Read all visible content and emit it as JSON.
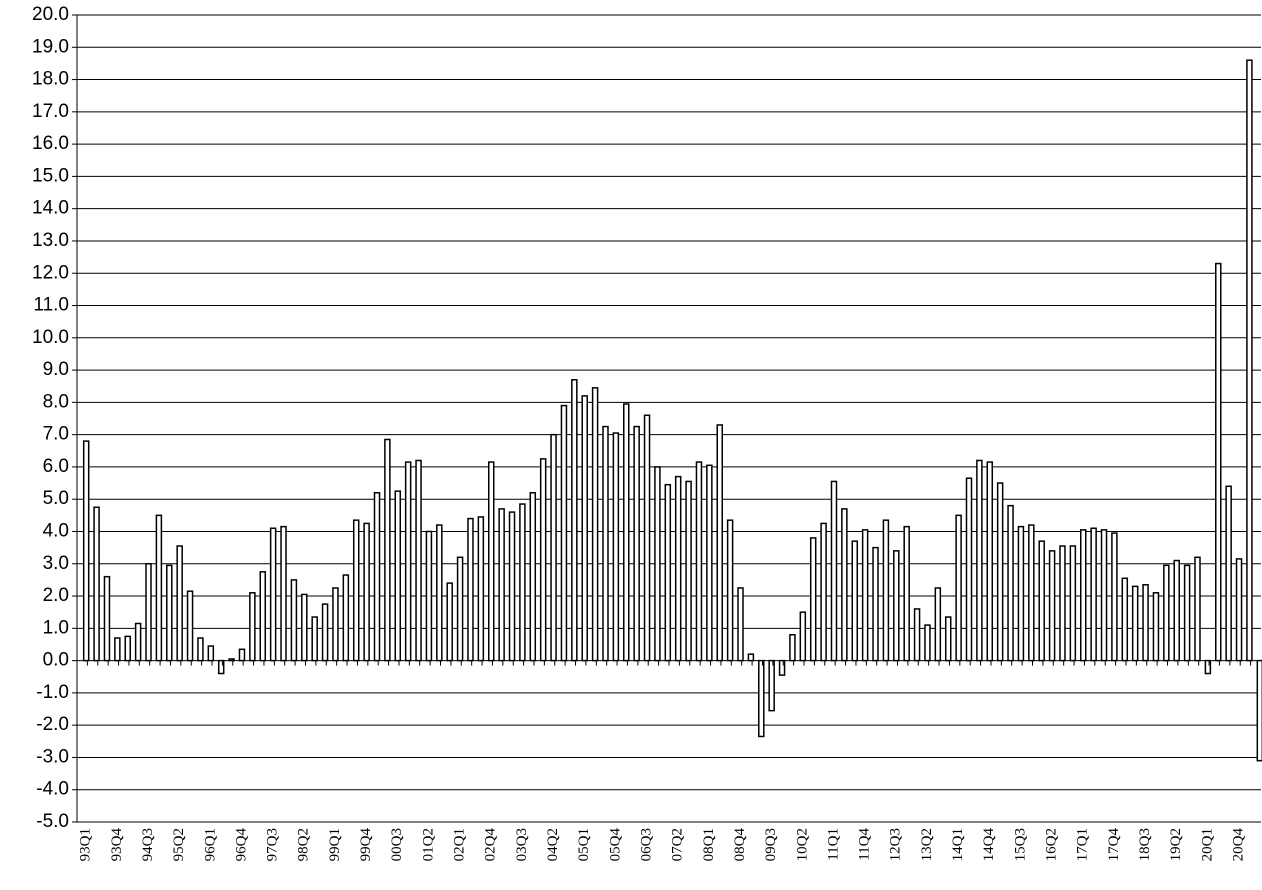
{
  "chart_data": {
    "type": "bar",
    "categories": [
      "93Q1",
      null,
      null,
      "93Q4",
      null,
      null,
      "94Q3",
      null,
      null,
      "95Q2",
      null,
      null,
      "96Q1",
      null,
      null,
      "96Q4",
      null,
      null,
      "97Q3",
      null,
      null,
      "98Q2",
      null,
      null,
      "99Q1",
      null,
      null,
      "99Q4",
      null,
      null,
      "00Q3",
      null,
      null,
      "01Q2",
      null,
      null,
      "02Q1",
      null,
      null,
      "02Q4",
      null,
      null,
      "03Q3",
      null,
      null,
      "04Q2",
      null,
      null,
      "05Q1",
      null,
      null,
      "05Q4",
      null,
      null,
      "06Q3",
      null,
      null,
      "07Q2",
      null,
      null,
      "08Q1",
      null,
      null,
      "08Q4",
      null,
      null,
      "09Q3",
      null,
      null,
      "10Q2",
      null,
      null,
      "11Q1",
      null,
      null,
      "11Q4",
      null,
      null,
      "12Q3",
      null,
      null,
      "13Q2",
      null,
      null,
      "14Q1",
      null,
      null,
      "14Q4",
      null,
      null,
      "15Q3",
      null,
      null,
      "16Q2",
      null,
      null,
      "17Q1",
      null,
      null,
      "17Q4",
      null,
      null,
      "18Q3",
      null,
      null,
      "19Q2",
      null,
      null,
      "20Q1",
      null,
      null,
      "20Q4",
      null,
      null
    ],
    "values": [
      6.8,
      4.75,
      2.6,
      0.7,
      0.75,
      1.15,
      3.0,
      4.5,
      2.95,
      3.55,
      2.15,
      0.7,
      0.45,
      -0.4,
      0.05,
      0.35,
      2.1,
      2.75,
      4.1,
      4.15,
      2.5,
      2.05,
      1.35,
      1.75,
      2.25,
      2.65,
      4.35,
      4.25,
      5.2,
      6.85,
      5.25,
      6.15,
      6.2,
      4.0,
      4.2,
      2.4,
      3.2,
      4.4,
      4.45,
      6.15,
      4.7,
      4.6,
      4.85,
      5.2,
      6.25,
      7.0,
      7.9,
      8.7,
      8.2,
      8.45,
      7.25,
      7.05,
      7.95,
      7.25,
      7.6,
      6.0,
      5.45,
      5.7,
      5.55,
      6.15,
      6.05,
      7.3,
      4.35,
      2.25,
      0.2,
      -2.35,
      -1.55,
      -0.45,
      0.8,
      1.5,
      3.8,
      4.25,
      5.55,
      4.7,
      3.7,
      4.05,
      3.5,
      4.35,
      3.4,
      4.15,
      1.6,
      1.1,
      2.25,
      1.35,
      4.5,
      5.65,
      6.2,
      6.15,
      5.5,
      4.8,
      4.15,
      4.2,
      3.7,
      3.4,
      3.55,
      3.55,
      4.05,
      4.1,
      4.05,
      3.95,
      2.55,
      2.3,
      2.35,
      2.1,
      2.95,
      3.1,
      2.95,
      3.2,
      -0.4,
      12.3,
      5.4,
      3.15,
      18.6,
      -3.1
    ],
    "color": "#ffffff",
    "ylim": [
      -5,
      20
    ],
    "yticks": [
      {
        "value": -5,
        "label": "-5.0"
      },
      {
        "value": -4,
        "label": "-4.0"
      },
      {
        "value": -3,
        "label": "-3.0"
      },
      {
        "value": -2,
        "label": "-2.0"
      },
      {
        "value": -1,
        "label": "-1.0"
      },
      {
        "value": 0,
        "label": "0.0"
      },
      {
        "value": 1,
        "label": "1.0"
      },
      {
        "value": 2,
        "label": "2.0"
      },
      {
        "value": 3,
        "label": "3.0"
      },
      {
        "value": 4,
        "label": "4.0"
      },
      {
        "value": 5,
        "label": "5.0"
      },
      {
        "value": 6,
        "label": "6.0"
      },
      {
        "value": 7,
        "label": "7.0"
      },
      {
        "value": 8,
        "label": "8.0"
      },
      {
        "value": 9,
        "label": "9.0"
      },
      {
        "value": 10,
        "label": "10.0"
      },
      {
        "value": 11,
        "label": "11.0"
      },
      {
        "value": 12,
        "label": "12.0"
      },
      {
        "value": 13,
        "label": "13.0"
      },
      {
        "value": 14,
        "label": "14.0"
      },
      {
        "value": 15,
        "label": "15.0"
      },
      {
        "value": 16,
        "label": "16.0"
      },
      {
        "value": 17,
        "label": "17.0"
      },
      {
        "value": 18,
        "label": "18.0"
      },
      {
        "value": 19,
        "label": "19.0"
      },
      {
        "value": 20,
        "label": "20.0"
      }
    ],
    "grid": true
  }
}
